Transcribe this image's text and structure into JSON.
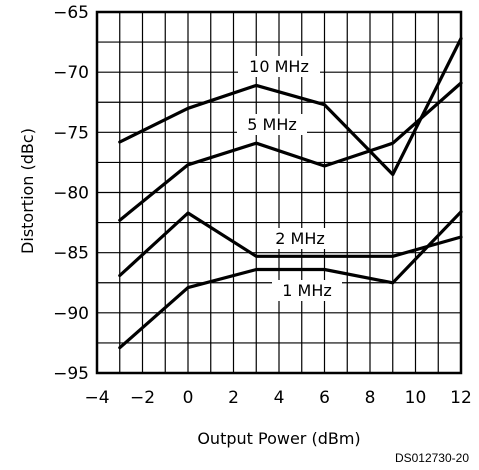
{
  "chart_data": {
    "type": "line",
    "xlabel": "Output Power (dBm)",
    "ylabel": "Distortion (dBc)",
    "xlim": [
      -4,
      12
    ],
    "ylim": [
      -95,
      -65
    ],
    "x_ticks": [
      "−4",
      "−2",
      "0",
      "2",
      "4",
      "6",
      "8",
      "10",
      "12"
    ],
    "y_ticks": [
      "−65",
      "−70",
      "−75",
      "−80",
      "−85",
      "−90",
      "−95"
    ],
    "grid": true,
    "series": [
      {
        "name": "10 MHz",
        "x": [
          -3,
          0,
          3,
          6,
          9,
          12
        ],
        "y": [
          -75.8,
          -73,
          -71.1,
          -72.7,
          -78.5,
          -67.2
        ]
      },
      {
        "name": "5 MHz",
        "x": [
          -3,
          0,
          3,
          6,
          9,
          12
        ],
        "y": [
          -82.3,
          -77.7,
          -75.9,
          -77.8,
          -75.9,
          -70.9
        ]
      },
      {
        "name": "2 MHz",
        "x": [
          -3,
          0,
          3,
          6,
          9,
          12
        ],
        "y": [
          -86.9,
          -81.7,
          -85.3,
          -85.3,
          -85.3,
          -83.7
        ]
      },
      {
        "name": "1 MHz",
        "x": [
          -3,
          0,
          3,
          6,
          9,
          12
        ],
        "y": [
          -92.9,
          -87.9,
          -86.4,
          -86.4,
          -87.5,
          -81.6
        ]
      }
    ],
    "figure_code": "DS012730-20"
  }
}
